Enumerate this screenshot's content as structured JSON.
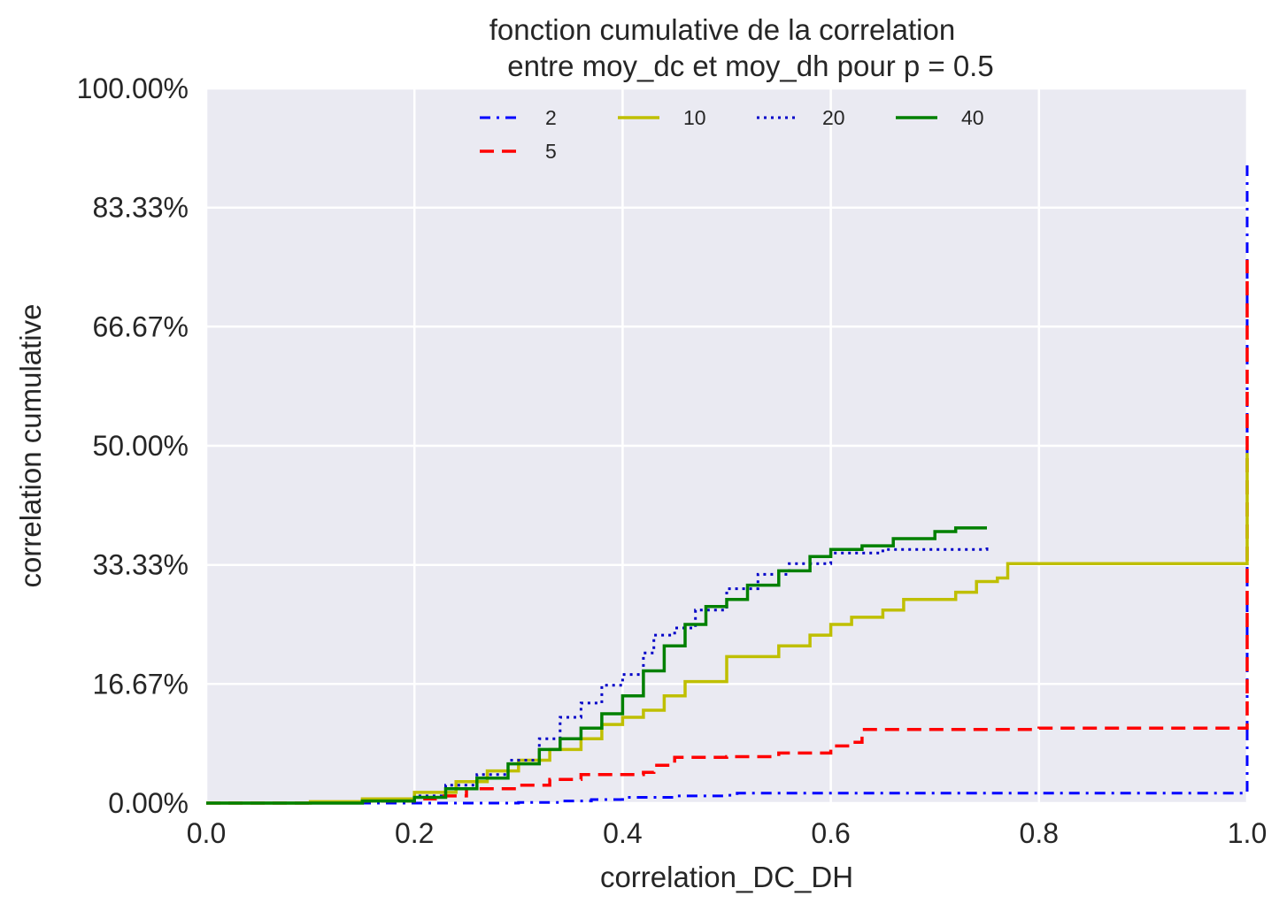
{
  "chart_data": {
    "type": "line",
    "title_line1": "fonction cumulative de la correlation",
    "title_line2": "entre moy_dc et moy_dh pour p = 0.5",
    "xlabel": "correlation_DC_DH",
    "ylabel": "correlation cumulative",
    "xlim": [
      0.0,
      1.0
    ],
    "ylim": [
      0.0,
      100.0
    ],
    "x_ticks": [
      "0.0",
      "0.2",
      "0.4",
      "0.6",
      "0.8",
      "1.0"
    ],
    "y_ticks": [
      "0.00%",
      "16.67%",
      "33.33%",
      "50.00%",
      "66.67%",
      "83.33%",
      "100.00%"
    ],
    "grid": true,
    "legend_placement": "top-center",
    "legend_columns": 4,
    "series": [
      {
        "name": "2",
        "color": "#0000ff",
        "style": "dashdot",
        "points": [
          [
            0.0,
            0.0
          ],
          [
            0.2,
            0.0
          ],
          [
            0.3,
            0.1
          ],
          [
            0.34,
            0.3
          ],
          [
            0.37,
            0.5
          ],
          [
            0.4,
            0.8
          ],
          [
            0.45,
            1.0
          ],
          [
            0.5,
            1.1
          ],
          [
            0.51,
            1.4
          ],
          [
            0.6,
            1.4
          ],
          [
            0.8,
            1.4
          ],
          [
            1.0,
            1.4
          ],
          [
            1.0,
            10.0
          ],
          [
            1.0,
            30.0
          ],
          [
            1.0,
            90.0
          ]
        ]
      },
      {
        "name": "5",
        "color": "#ff0000",
        "style": "dashed",
        "points": [
          [
            0.0,
            0.0
          ],
          [
            0.1,
            0.1
          ],
          [
            0.15,
            0.3
          ],
          [
            0.2,
            0.6
          ],
          [
            0.22,
            1.0
          ],
          [
            0.25,
            2.0
          ],
          [
            0.3,
            2.5
          ],
          [
            0.33,
            3.3
          ],
          [
            0.36,
            4.0
          ],
          [
            0.42,
            4.3
          ],
          [
            0.43,
            5.3
          ],
          [
            0.45,
            6.4
          ],
          [
            0.5,
            6.5
          ],
          [
            0.55,
            7.0
          ],
          [
            0.6,
            8.0
          ],
          [
            0.62,
            8.5
          ],
          [
            0.63,
            10.3
          ],
          [
            0.7,
            10.3
          ],
          [
            0.8,
            10.5
          ],
          [
            1.0,
            10.5
          ],
          [
            1.0,
            50.0
          ],
          [
            1.0,
            76.0
          ]
        ]
      },
      {
        "name": "10",
        "color": "#bfbf00",
        "style": "solid",
        "points": [
          [
            0.0,
            0.0
          ],
          [
            0.1,
            0.2
          ],
          [
            0.15,
            0.6
          ],
          [
            0.2,
            1.5
          ],
          [
            0.24,
            3.0
          ],
          [
            0.27,
            4.5
          ],
          [
            0.3,
            6.0
          ],
          [
            0.33,
            7.5
          ],
          [
            0.36,
            9.0
          ],
          [
            0.38,
            11.0
          ],
          [
            0.4,
            12.0
          ],
          [
            0.42,
            13.0
          ],
          [
            0.44,
            15.0
          ],
          [
            0.46,
            17.0
          ],
          [
            0.5,
            18.5
          ],
          [
            0.5,
            20.5
          ],
          [
            0.55,
            22.0
          ],
          [
            0.58,
            23.5
          ],
          [
            0.6,
            25.0
          ],
          [
            0.62,
            26.0
          ],
          [
            0.65,
            27.0
          ],
          [
            0.67,
            28.5
          ],
          [
            0.72,
            29.5
          ],
          [
            0.74,
            31.0
          ],
          [
            0.76,
            31.5
          ],
          [
            0.77,
            33.5
          ],
          [
            0.9,
            33.5
          ],
          [
            1.0,
            33.5
          ],
          [
            1.0,
            49.0
          ]
        ]
      },
      {
        "name": "20",
        "color": "#0000c8",
        "style": "dotted",
        "points": [
          [
            0.0,
            0.0
          ],
          [
            0.15,
            0.3
          ],
          [
            0.2,
            1.0
          ],
          [
            0.23,
            2.5
          ],
          [
            0.26,
            4.0
          ],
          [
            0.29,
            6.0
          ],
          [
            0.32,
            9.0
          ],
          [
            0.34,
            12.0
          ],
          [
            0.36,
            14.0
          ],
          [
            0.38,
            16.5
          ],
          [
            0.4,
            18.0
          ],
          [
            0.42,
            21.0
          ],
          [
            0.43,
            23.5
          ],
          [
            0.45,
            24.5
          ],
          [
            0.47,
            27.0
          ],
          [
            0.5,
            30.0
          ],
          [
            0.53,
            32.0
          ],
          [
            0.56,
            33.5
          ],
          [
            0.6,
            35.0
          ],
          [
            0.65,
            35.5
          ],
          [
            0.7,
            35.5
          ],
          [
            0.75,
            35.8
          ]
        ]
      },
      {
        "name": "40",
        "color": "#008000",
        "style": "solid",
        "points": [
          [
            0.0,
            0.0
          ],
          [
            0.15,
            0.3
          ],
          [
            0.2,
            0.8
          ],
          [
            0.23,
            2.0
          ],
          [
            0.26,
            3.5
          ],
          [
            0.29,
            5.5
          ],
          [
            0.32,
            7.5
          ],
          [
            0.34,
            9.0
          ],
          [
            0.36,
            10.5
          ],
          [
            0.38,
            12.5
          ],
          [
            0.4,
            15.0
          ],
          [
            0.42,
            18.5
          ],
          [
            0.44,
            22.0
          ],
          [
            0.46,
            25.0
          ],
          [
            0.48,
            27.5
          ],
          [
            0.5,
            28.5
          ],
          [
            0.52,
            30.5
          ],
          [
            0.55,
            32.5
          ],
          [
            0.58,
            34.5
          ],
          [
            0.6,
            35.5
          ],
          [
            0.63,
            36.0
          ],
          [
            0.66,
            37.0
          ],
          [
            0.7,
            38.0
          ],
          [
            0.72,
            38.5
          ],
          [
            0.75,
            38.5
          ]
        ]
      }
    ]
  }
}
